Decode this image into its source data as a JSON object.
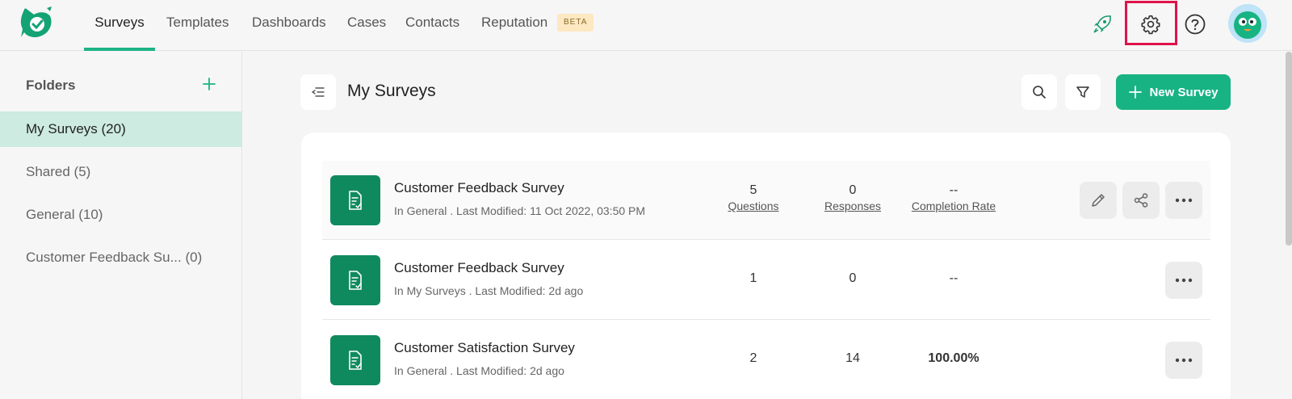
{
  "nav": {
    "tabs": [
      {
        "label": "Surveys",
        "active": true
      },
      {
        "label": "Templates"
      },
      {
        "label": "Dashboards"
      },
      {
        "label": "Cases"
      },
      {
        "label": "Contacts"
      },
      {
        "label": "Reputation"
      }
    ],
    "beta_label": "BETA",
    "accent": "#1db386"
  },
  "sidebar": {
    "title": "Folders",
    "folders": [
      {
        "label": "My Surveys (20)",
        "active": true
      },
      {
        "label": "Shared (5)"
      },
      {
        "label": "General (10)"
      },
      {
        "label": "Customer Feedback Su... (0)"
      }
    ]
  },
  "main": {
    "title": "My Surveys",
    "new_survey_label": "New Survey",
    "surveys": [
      {
        "name": "Customer Feedback Survey",
        "meta": "In General . Last Modified: 11 Oct 2022, 03:50 PM",
        "questions": "5",
        "responses": "0",
        "completion": "--",
        "questions_label": "Questions",
        "responses_label": "Responses",
        "completion_label": "Completion Rate"
      },
      {
        "name": "Customer Feedback Survey",
        "meta": "In My Surveys . Last Modified: 2d ago",
        "questions": "1",
        "responses": "0",
        "completion": "--"
      },
      {
        "name": "Customer Satisfaction Survey",
        "meta": "In General . Last Modified: 2d ago",
        "questions": "2",
        "responses": "14",
        "completion": "100.00%"
      }
    ]
  }
}
